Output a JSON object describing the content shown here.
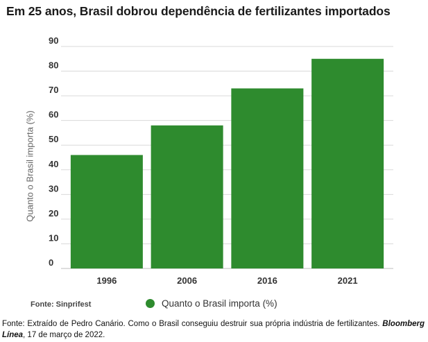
{
  "title": "Em 25 anos, Brasil dobrou dependência de fertilizantes importados",
  "colors": {
    "bar": "#2e8b2e",
    "grid": "#d9d9d9",
    "tick": "#333333"
  },
  "chart_data": {
    "type": "bar",
    "categories": [
      "1996",
      "2006",
      "2016",
      "2021"
    ],
    "series": [
      {
        "name": "Quanto o Brasil importa (%)",
        "values": [
          46,
          58,
          73,
          85
        ]
      }
    ],
    "ylabel": "Quanto o Brasil importa (%)",
    "xlabel": "",
    "ylim": [
      0,
      90
    ],
    "yticks": [
      0,
      10,
      20,
      30,
      40,
      50,
      60,
      70,
      80,
      90
    ],
    "grid": true,
    "legend": "bottom"
  },
  "source_note": "Fonte: Sinprifest",
  "caption": {
    "text": "Fonte: Extraído de Pedro Canário. Como o Brasil conseguiu destruir sua própria indústria de fertilizantes.",
    "publication": "Bloomberg Línea",
    "date": ", 17 de março de 2022."
  }
}
